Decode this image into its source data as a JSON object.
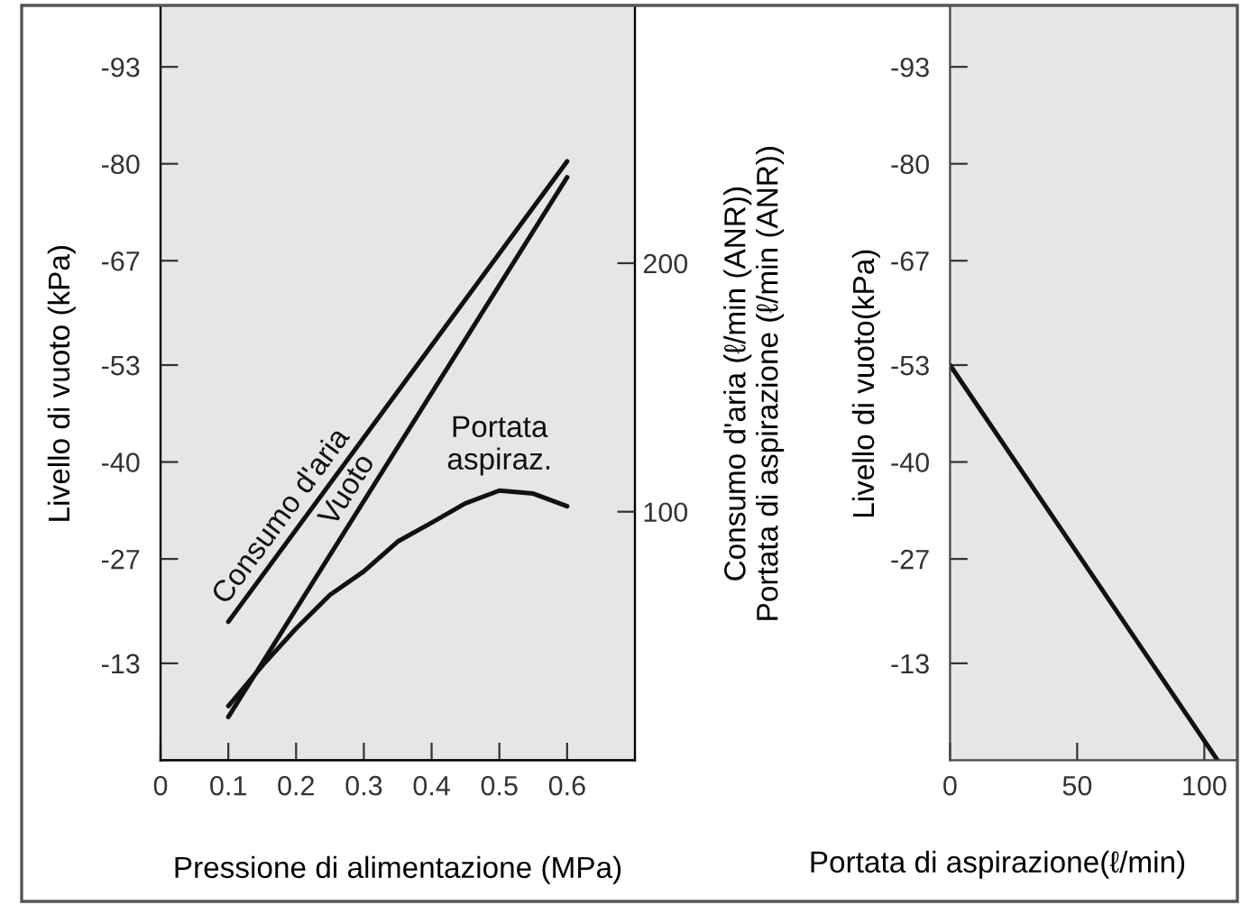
{
  "chart_data": [
    {
      "type": "line",
      "xlabel": "Pressione di alimentazione (MPa)",
      "ylabel": "Livello di vuoto (kPa)",
      "y2label": "Consumo d'aria (ℓ/min (ANR))\nPortata di aspirazione (ℓ/min (ANR))",
      "xlim": [
        0,
        0.7
      ],
      "xticks": [
        0,
        0.1,
        0.2,
        0.3,
        0.4,
        0.5,
        0.6
      ],
      "ylim": [
        0,
        -101
      ],
      "yticks": [
        -13,
        -27,
        -40,
        -53,
        -67,
        -80,
        -93
      ],
      "y2lim": [
        0,
        303
      ],
      "y2ticks": [
        100,
        200
      ],
      "grid": false,
      "legend": false,
      "marker": "none",
      "line_style": "solid",
      "series": [
        {
          "name": "Consumo d'aria",
          "color": "#111111",
          "axis": "y2",
          "x": [
            0.1,
            0.6
          ],
          "values": [
            55.7,
            241
          ]
        },
        {
          "name": "Vuoto",
          "color": "#111111",
          "axis": "y",
          "x": [
            0.1,
            0.6
          ],
          "values": [
            -5.8,
            -78.2
          ]
        },
        {
          "name": "Portata\naspiraz.",
          "color": "#111111",
          "axis": "y2",
          "x": [
            0.1,
            0.15,
            0.2,
            0.25,
            0.3,
            0.35,
            0.4,
            0.45,
            0.5,
            0.55,
            0.6
          ],
          "values": [
            21.8,
            38,
            53,
            66.5,
            76,
            88,
            95.6,
            103.4,
            108.5,
            107.3,
            102.2
          ]
        }
      ]
    },
    {
      "type": "line",
      "xlabel": "Portata di aspirazione(ℓ/min)",
      "ylabel": "Livello di vuoto(kPa)",
      "xlim": [
        0,
        113
      ],
      "xticks": [
        0,
        50,
        100
      ],
      "ylim": [
        0,
        -101
      ],
      "yticks": [
        -13,
        -27,
        -40,
        -53,
        -67,
        -80,
        -93
      ],
      "grid": false,
      "legend": false,
      "marker": "none",
      "line_style": "solid",
      "series": [
        {
          "color": "#111111",
          "x": [
            0,
            105.2
          ],
          "values": [
            -53,
            0
          ]
        }
      ]
    }
  ]
}
